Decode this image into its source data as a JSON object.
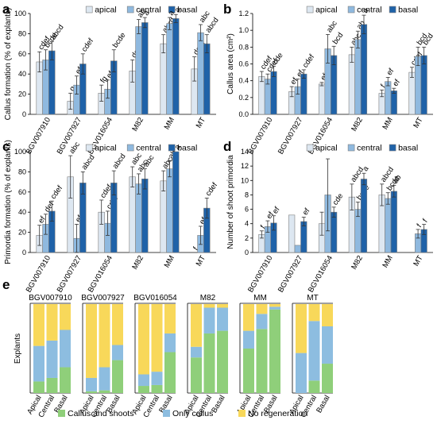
{
  "colors": {
    "apical": "#dde7f1",
    "central": "#8fb9df",
    "basal": "#1f62a8",
    "bar_edge": "#7f7f7f",
    "callus_and_shoots": "#8fcf7a",
    "only_callus": "#8dbde0",
    "no_regeneration": "#f8d85a"
  },
  "genotypes": [
    "BGV007910",
    "BGV007927",
    "BGV016054",
    "M82",
    "MM",
    "MT"
  ],
  "series_names": [
    "apical",
    "central",
    "basal"
  ],
  "chart_data": [
    {
      "panel": "a",
      "type": "bar",
      "ylabel": "Callus formation (% of explants)",
      "ylim": [
        0,
        100
      ],
      "yticks": [
        0,
        20,
        40,
        60,
        80,
        100
      ],
      "categories": [
        "BGV007910",
        "BGV007927",
        "BGV016054",
        "M82",
        "MM",
        "MT"
      ],
      "series": [
        {
          "name": "apical",
          "values": [
            52,
            13,
            21,
            43,
            70,
            45
          ],
          "errors": [
            10,
            8,
            8,
            11,
            9,
            12
          ],
          "letters": [
            "cdef",
            "g",
            "fg",
            "defg",
            "abcd",
            "defg"
          ]
        },
        {
          "name": "central",
          "values": [
            54,
            29,
            25,
            87,
            90,
            81
          ],
          "errors": [
            10,
            9,
            9,
            7,
            6,
            8
          ],
          "letters": [
            "bcde",
            "efg",
            "efg",
            "ab",
            "a",
            "abc"
          ]
        },
        {
          "name": "basal",
          "values": [
            63,
            50,
            53,
            91,
            95,
            70
          ],
          "errors": [
            9,
            10,
            11,
            5,
            4,
            9
          ],
          "letters": [
            "abcd",
            "cdef",
            "bcde",
            "a",
            "a",
            "abcd"
          ]
        }
      ]
    },
    {
      "panel": "b",
      "type": "bar",
      "ylabel": "Callus area (cm²)",
      "ylim": [
        0,
        1.2
      ],
      "yticks": [
        "0.0",
        "0.2",
        "0.4",
        "0.6",
        "0.8",
        "1.0",
        "1.2"
      ],
      "categories": [
        "BGV007910",
        "BGV007927",
        "BGV016054",
        "M82",
        "MM",
        "MT"
      ],
      "series": [
        {
          "name": "apical",
          "values": [
            0.45,
            0.27,
            0.36,
            0.71,
            0.25,
            0.5
          ],
          "errors": [
            0.06,
            0.06,
            0.02,
            0.09,
            0.04,
            0.06
          ],
          "letters": [
            "cdef",
            "ef",
            "ef",
            "abc",
            "f",
            "cdef"
          ]
        },
        {
          "name": "central",
          "values": [
            0.42,
            0.33,
            0.78,
            0.89,
            0.39,
            0.69
          ],
          "errors": [
            0.06,
            0.09,
            0.17,
            0.1,
            0.05,
            0.11
          ],
          "letters": [
            "cdef",
            "ef",
            "abc",
            "ab",
            "ef",
            "bcd"
          ]
        },
        {
          "name": "basal",
          "values": [
            0.51,
            0.48,
            0.7,
            1.07,
            0.28,
            0.7
          ],
          "errors": [
            0.06,
            0.05,
            0.11,
            0.11,
            0.03,
            0.1
          ],
          "letters": [
            "cde",
            "cdef",
            "bcd",
            "a",
            "ef",
            "bcd"
          ]
        }
      ]
    },
    {
      "panel": "c",
      "type": "bar",
      "ylabel": "Primordia formation (% of explants)",
      "ylim": [
        0,
        100
      ],
      "yticks": [
        0,
        20,
        40,
        60,
        80,
        100
      ],
      "categories": [
        "BGV007910",
        "BGV007927",
        "BGV016054",
        "M82",
        "MM",
        "MT"
      ],
      "series": [
        {
          "name": "apical",
          "values": [
            17,
            75,
            40,
            75,
            71,
            0
          ],
          "errors": [
            10,
            21,
            12,
            10,
            10,
            0
          ],
          "letters": [
            "ef",
            "abc",
            "cdef",
            "abc",
            "abc",
            "f"
          ]
        },
        {
          "name": "central",
          "values": [
            28,
            14,
            29,
            68,
            83,
            17
          ],
          "errors": [
            10,
            14,
            12,
            10,
            8,
            9
          ],
          "letters": [
            "def",
            "ef",
            "cdef",
            "abc",
            "ab",
            "ef"
          ]
        },
        {
          "name": "basal",
          "values": [
            41,
            69,
            69,
            73,
            100,
            44
          ],
          "errors": [
            10,
            11,
            12,
            10,
            0,
            10
          ],
          "letters": [
            "cdef",
            "abcd",
            "abcd",
            "abc",
            "a",
            "cdef"
          ]
        }
      ]
    },
    {
      "panel": "d",
      "type": "bar",
      "ylabel": "Number of shoot primordia",
      "ylim": [
        0,
        14
      ],
      "yticks": [
        0,
        2,
        4,
        6,
        8,
        10,
        12,
        14
      ],
      "categories": [
        "BGV007910",
        "BGV007927",
        "BGV016054",
        "M82",
        "MM",
        "MT"
      ],
      "series": [
        {
          "name": "apical",
          "values": [
            2.5,
            5.2,
            4.0,
            7.7,
            8.0,
            null
          ],
          "errors": [
            0.5,
            0,
            1.6,
            1.8,
            1.5,
            0
          ],
          "letters": [
            "f",
            "",
            "",
            "abcd",
            "abcd",
            ""
          ]
        },
        {
          "name": "central",
          "values": [
            3.6,
            1.0,
            8.0,
            6.0,
            7.5,
            2.6
          ],
          "errors": [
            0.8,
            0,
            5.0,
            1.0,
            0.8,
            0.6
          ],
          "letters": [
            "ef",
            "",
            "",
            "bcde",
            "bcde",
            "f"
          ]
        },
        {
          "name": "basal",
          "values": [
            4.1,
            4.3,
            5.6,
            10.2,
            8.5,
            3.2
          ],
          "errors": [
            1.0,
            0.6,
            0.7,
            0.8,
            0.8,
            0.7
          ],
          "letters": [
            "ef",
            "ef",
            "cde",
            "a",
            "ab",
            "f"
          ]
        }
      ]
    },
    {
      "panel": "e",
      "type": "bar",
      "stacked": true,
      "ylabel": "Explants",
      "positions": [
        "Apical",
        "Central",
        "Basal"
      ],
      "series_names": [
        "Callus and shoots",
        "Only callus",
        "No regeneration"
      ],
      "groups": [
        {
          "name": "BGV007910",
          "bars": [
            [
              13,
              40,
              47
            ],
            [
              17,
              42,
              41
            ],
            [
              29,
              42,
              29
            ]
          ]
        },
        {
          "name": "BGV007927",
          "bars": [
            [
              2,
              15,
              83
            ],
            [
              3,
              26,
              71
            ],
            [
              37,
              17,
              46
            ]
          ]
        },
        {
          "name": "BGV016054",
          "bars": [
            [
              8,
              13,
              79
            ],
            [
              9,
              15,
              76
            ],
            [
              46,
              21,
              33
            ]
          ]
        },
        {
          "name": "M82",
          "bars": [
            [
              40,
              12,
              48
            ],
            [
              67,
              29,
              4
            ],
            [
              70,
              26,
              4
            ]
          ]
        },
        {
          "name": "MM",
          "bars": [
            [
              50,
              20,
              30
            ],
            [
              72,
              17,
              11
            ],
            [
              94,
              3,
              3
            ]
          ]
        },
        {
          "name": "MT",
          "bars": [
            [
              0,
              45,
              55
            ],
            [
              14,
              67,
              19
            ],
            [
              33,
              42,
              25
            ]
          ]
        }
      ]
    }
  ],
  "panel_e_legend": [
    "Callus and shoots",
    "Only callus",
    "No regeneration"
  ]
}
